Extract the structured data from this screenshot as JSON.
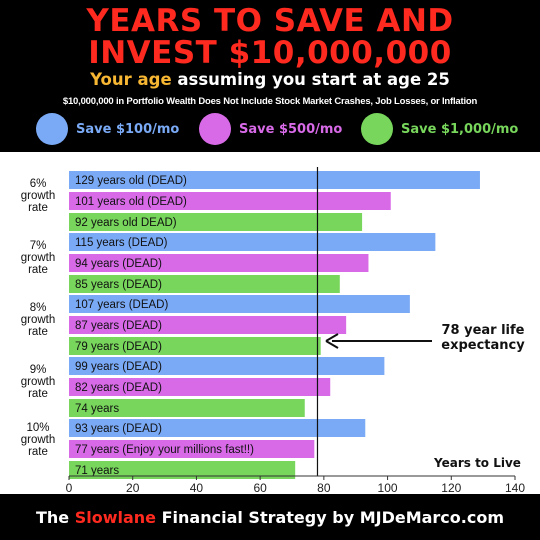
{
  "header": {
    "title_line1": "YEARS TO SAVE AND",
    "title_line2": "INVEST $10,000,000",
    "subtitle_part1": "Your age",
    "subtitle_part2": "assuming you start at",
    "subtitle_part3": "age 25",
    "note": "$10,000,000 in Portfolio Wealth Does Not Include Stock Market Crashes, Job Losses, or Inflation"
  },
  "colors": {
    "title_red": "#ff2a1f",
    "subtitle_yellow": "#f7b733",
    "blue": "#7aaaf6",
    "purple": "#d86ae8",
    "green": "#77d65b"
  },
  "legend": [
    {
      "label": "Save $100/mo",
      "color": "#7aaaf6"
    },
    {
      "label": "Save $500/mo",
      "color": "#d86ae8"
    },
    {
      "label": "Save $1,000/mo",
      "color": "#77d65b"
    }
  ],
  "chart_data": {
    "type": "bar",
    "orientation": "horizontal",
    "groups": [
      {
        "label_line1": "6%",
        "label_line2": "growth",
        "label_line3": "rate"
      },
      {
        "label_line1": "7%",
        "label_line2": "growth",
        "label_line3": "rate"
      },
      {
        "label_line1": "8%",
        "label_line2": "growth",
        "label_line3": "rate"
      },
      {
        "label_line1": "9%",
        "label_line2": "growth",
        "label_line3": "rate"
      },
      {
        "label_line1": "10%",
        "label_line2": "growth",
        "label_line3": "rate"
      }
    ],
    "series": [
      {
        "name": "Save $100/mo",
        "color": "#7aaaf6",
        "values": [
          129,
          115,
          107,
          99,
          93
        ],
        "labels": [
          "129 years old (DEAD)",
          "115 years (DEAD)",
          "107 years (DEAD)",
          "99 years (DEAD)",
          "93 years (DEAD)"
        ]
      },
      {
        "name": "Save $500/mo",
        "color": "#d86ae8",
        "values": [
          101,
          94,
          87,
          82,
          77
        ],
        "labels": [
          "101 years old (DEAD)",
          "94 years (DEAD)",
          "87 years (DEAD)",
          "82 years (DEAD)",
          "77 years (Enjoy your millions fast!!)"
        ]
      },
      {
        "name": "Save $1,000/mo",
        "color": "#77d65b",
        "values": [
          92,
          85,
          79,
          74,
          71
        ],
        "labels": [
          "92 years old DEAD)",
          "85 years (DEAD)",
          "79 years (DEAD)",
          "74 years",
          "71 years"
        ]
      }
    ],
    "xlim": [
      0,
      140
    ],
    "xticks": [
      0,
      20,
      40,
      60,
      80,
      100,
      120,
      140
    ],
    "xlabel": "Years to Live",
    "reference_line": {
      "value": 78,
      "label_line1": "78 year life",
      "label_line2": "expectancy"
    },
    "grid": false
  },
  "footer": {
    "part1": "The",
    "part2": "Slowlane",
    "part3": "Financial Strategy by MJDeMarco.com"
  }
}
